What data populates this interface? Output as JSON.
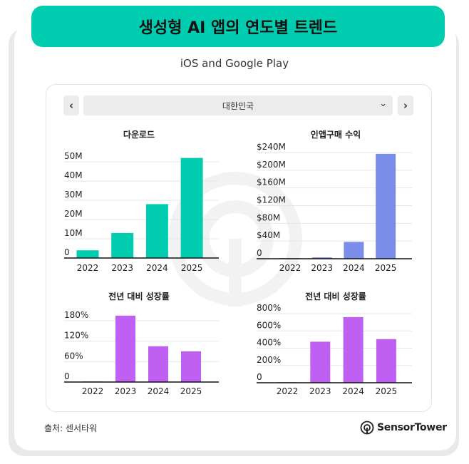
{
  "header": {
    "title": "생성형 AI 앱의 연도별 트렌드",
    "subtitle": "iOS and Google Play"
  },
  "controls": {
    "prev_label": "‹",
    "next_label": "›",
    "country": "대한민국",
    "dropdown_icon": "chevron-down-icon"
  },
  "footer": {
    "source": "출처: 센서타워",
    "brand": "SensorTower"
  },
  "colors": {
    "accent": "#00cdb0",
    "downloads": "#00cdb0",
    "revenue": "#7a8de8",
    "growth": "#c060f2"
  },
  "chart_data": [
    {
      "type": "bar",
      "title": "다운로드",
      "categories": [
        "2022",
        "2023",
        "2024",
        "2025"
      ],
      "values": [
        4,
        13,
        28,
        52
      ],
      "yticks": [
        0,
        10,
        20,
        30,
        40,
        50
      ],
      "ytick_labels": [
        "0",
        "10M",
        "20M",
        "30M",
        "40M",
        "50M"
      ],
      "ylim": [
        0,
        55
      ],
      "color": "#00cdb0",
      "xlabel": "",
      "ylabel": ""
    },
    {
      "type": "bar",
      "title": "인앱구매 수익",
      "categories": [
        "2022",
        "2023",
        "2024",
        "2025"
      ],
      "values": [
        0.5,
        3,
        38,
        237
      ],
      "yticks": [
        0,
        40,
        80,
        120,
        160,
        200,
        240
      ],
      "ytick_labels": [
        "0",
        "$40M",
        "$80M",
        "$120M",
        "$160M",
        "$200M",
        "$240M"
      ],
      "ylim": [
        0,
        256
      ],
      "color": "#7a8de8",
      "xlabel": "",
      "ylabel": ""
    },
    {
      "type": "bar",
      "title": "전년 대비 성장률",
      "categories": [
        "2022",
        "2023",
        "2024",
        "2025"
      ],
      "values": [
        0,
        195,
        105,
        90
      ],
      "yticks": [
        0,
        60,
        120,
        180
      ],
      "ytick_labels": [
        "0",
        "60%",
        "120%",
        "180%"
      ],
      "ylim": [
        0,
        214
      ],
      "color": "#c060f2",
      "xlabel": "",
      "ylabel": ""
    },
    {
      "type": "bar",
      "title": "전년 대비 성장률",
      "categories": [
        "2022",
        "2023",
        "2024",
        "2025"
      ],
      "values": [
        3,
        475,
        760,
        505
      ],
      "yticks": [
        0,
        200,
        400,
        600,
        800
      ],
      "ytick_labels": [
        "0",
        "200%",
        "400%",
        "600%",
        "800%"
      ],
      "ylim": [
        0,
        850
      ],
      "color": "#c060f2",
      "xlabel": "",
      "ylabel": ""
    }
  ]
}
